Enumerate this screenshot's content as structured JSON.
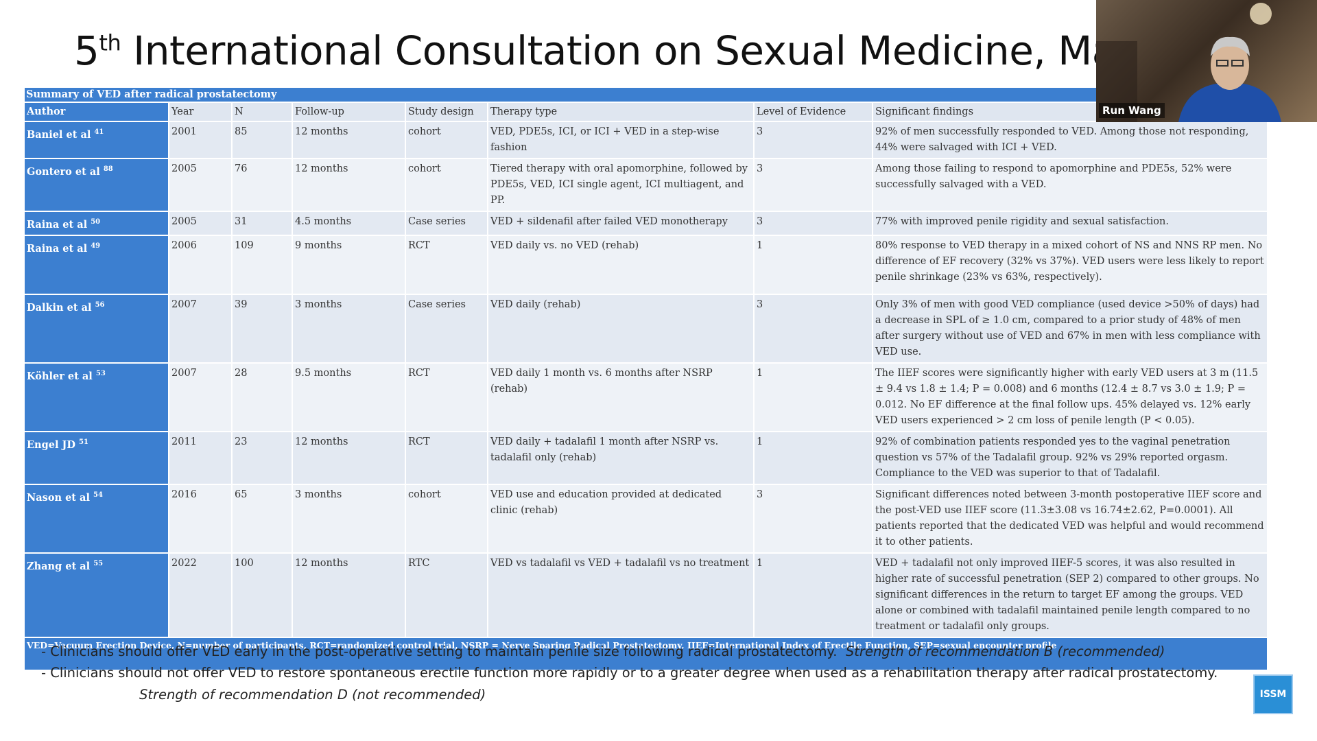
{
  "slide": {
    "title_number": "5",
    "title_sup": "th",
    "title_rest": "International Consultation on Sexual Medicine, Madrid",
    "table": {
      "caption": "Summary of VED after radical prostatectomy",
      "headers": [
        "Author",
        "Year",
        "N",
        "Follow-up",
        "Study design",
        "Therapy type",
        "Level of Evidence",
        "Significant findings"
      ],
      "rows": [
        [
          {
            "name": "Baniel et al",
            "ref": "41"
          },
          "2001",
          "85",
          "12 months",
          "cohort",
          "VED, PDE5s, ICI, or ICI + VED in a step-wise fashion",
          "3",
          "92% of men successfully responded to VED. Among those not responding, 44% were salvaged with ICI + VED."
        ],
        [
          {
            "name": "Gontero et al",
            "ref": "88"
          },
          "2005",
          "76",
          "12 months",
          "cohort",
          "Tiered therapy with oral apomorphine, followed by PDE5s, VED, ICI single agent, ICI multiagent, and PP.",
          "3",
          "Among those failing to respond to apomorphine and PDE5s, 52% were successfully salvaged with a VED."
        ],
        [
          {
            "name": "Raina et al",
            "ref": "50"
          },
          "2005",
          "31",
          "4.5 months",
          "Case series",
          "VED + sildenafil after failed VED monotherapy",
          "3",
          "77% with improved penile rigidity and sexual satisfaction."
        ],
        [
          {
            "name": "Raina et al",
            "ref": "49"
          },
          "2006",
          "109",
          "9 months",
          "RCT",
          "VED daily vs. no VED (rehab)",
          "1",
          "80% response to VED therapy in a mixed cohort of NS and NNS RP men. No difference of EF recovery (32% vs 37%). VED users were less likely to report penile shrinkage (23% vs 63%, respectively)."
        ],
        [
          {
            "name": "Dalkin et al",
            "ref": "56"
          },
          "2007",
          "39",
          "3 months",
          "Case series",
          "VED daily (rehab)",
          "3",
          "Only 3% of men with good VED compliance (used device >50% of days) had a decrease in SPL of ≥ 1.0 cm, compared to a prior study of 48% of men after surgery without use of VED and 67% in men with less compliance with VED use."
        ],
        [
          {
            "name": "Köhler et al",
            "ref": "53"
          },
          "2007",
          "28",
          "9.5 months",
          "RCT",
          "VED daily 1 month vs. 6 months after NSRP (rehab)",
          "1",
          "The IIEF scores were significantly higher with early VED users at 3 m (11.5 ± 9.4 vs 1.8 ± 1.4; P = 0.008) and 6 months (12.4 ± 8.7 vs 3.0 ± 1.9; P = 0.012. No EF difference at the final follow ups. 45% delayed vs. 12% early VED users experienced > 2 cm loss of penile length (P < 0.05)."
        ],
        [
          {
            "name": "Engel JD",
            "ref": "51"
          },
          "2011",
          "23",
          "12 months",
          "RCT",
          "VED daily + tadalafil 1 month after NSRP vs. tadalafil only (rehab)",
          "1",
          "92% of combination patients responded yes to the vaginal penetration question vs 57% of the Tadalafil group. 92% vs 29% reported orgasm. Compliance to the VED was superior to that of Tadalafil."
        ],
        [
          {
            "name": "Nason et al",
            "ref": "54"
          },
          "2016",
          "65",
          "3 months",
          "cohort",
          "VED use and education provided at dedicated clinic (rehab)",
          "3",
          "Significant differences noted between 3-month postoperative IIEF score and the post-VED use IIEF score (11.3±3.08 vs 16.74±2.62, P=0.0001). All patients reported that the dedicated VED was helpful and would recommend it to other patients."
        ],
        [
          {
            "name": "Zhang et al",
            "ref": "55"
          },
          "2022",
          "100",
          "12 months",
          "RTC",
          "VED vs tadalafil vs VED + tadalafil vs no treatment",
          "1",
          "VED + tadalafil not only improved IIEF-5 scores, it was also resulted in higher rate of successful penetration (SEP 2) compared to other groups. No significant differences in the return to target EF among the groups. VED alone or combined with tadalafil maintained penile length compared to no treatment or tadalafil only groups."
        ]
      ],
      "footnote": "VED=Vacuum Erection Device, N=number of participants, RCT=randomized control trial, NSRP = Nerve Sparing Radical Prostatectomy, IIEF=International Index of Erectile Function, SEP=sexual encounter profile"
    },
    "bullets": [
      {
        "text": "- Clinicians should offer VED early in the post-operative setting to maintain penile size following radical prostatectomy.",
        "strength": "Strength of recommendation B (recommended)"
      },
      {
        "text": "- Clinicians should not offer VED to restore spontaneous erectile function more rapidly or to a greater degree when used as a rehabilitation therapy after radical prostatectomy.",
        "strength": "Strength of recommendation D (not recommended)"
      }
    ],
    "logo": "ISSM"
  },
  "video": {
    "participant": "Run Wang"
  }
}
